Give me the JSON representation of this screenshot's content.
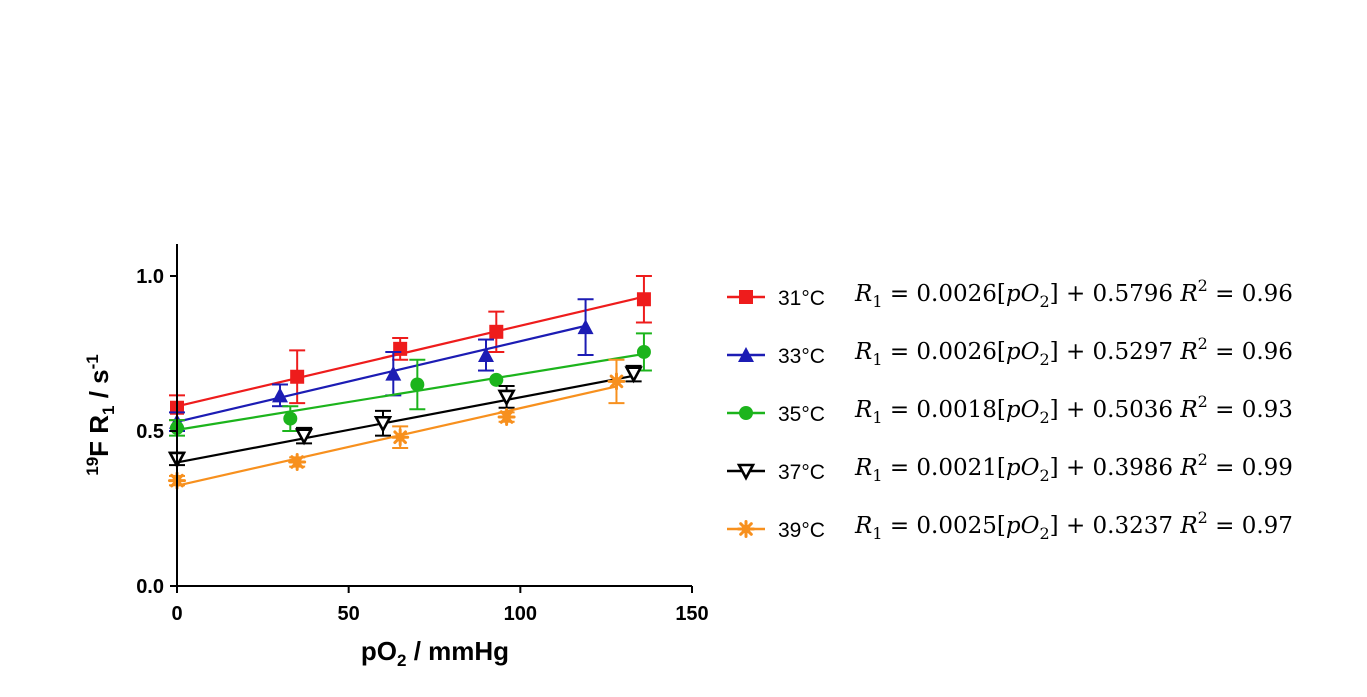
{
  "chart_data": {
    "type": "scatter",
    "title": "",
    "xlabel": {
      "main": "pO",
      "sub": "2",
      "rest": " / mmHg"
    },
    "ylabel": {
      "sup1": "19",
      "main": "F R",
      "sub": "1",
      "rest": " / s",
      "sup2": "-1"
    },
    "xlim": [
      0,
      150
    ],
    "ylim": [
      0,
      1.1
    ],
    "xticks": [
      0,
      50,
      100,
      150
    ],
    "xtick_labels": [
      "0",
      "50",
      "100",
      "150"
    ],
    "yticks": [
      0,
      0.5,
      1.0
    ],
    "ytick_labels": [
      "0.0",
      "0.5",
      "1.0"
    ],
    "grid": false,
    "legend_position": "right",
    "series": [
      {
        "name": "31°C",
        "color": "#ee1c1c",
        "marker": "square",
        "x": [
          0,
          35,
          65,
          93,
          136
        ],
        "y": [
          0.575,
          0.675,
          0.765,
          0.82,
          0.925
        ],
        "err": [
          0.04,
          0.085,
          0.035,
          0.065,
          0.075
        ],
        "fit": {
          "slope": 0.0026,
          "intercept": 0.5796,
          "x_range": [
            0,
            136
          ]
        },
        "equation": {
          "slope": "0.0026",
          "intercept": "0.5796",
          "r2": "0.96"
        }
      },
      {
        "name": "33°C",
        "color": "#1c1cb4",
        "marker": "triangle-up",
        "x": [
          0,
          30,
          63,
          90,
          119
        ],
        "y": [
          0.53,
          0.615,
          0.685,
          0.745,
          0.835
        ],
        "err": [
          0.03,
          0.035,
          0.07,
          0.05,
          0.09
        ],
        "fit": {
          "slope": 0.0026,
          "intercept": 0.5297,
          "x_range": [
            0,
            119
          ]
        },
        "equation": {
          "slope": "0.0026",
          "intercept": "0.5297",
          "r2": "0.96"
        }
      },
      {
        "name": "35°C",
        "color": "#1cb41c",
        "marker": "circle",
        "x": [
          0,
          33,
          70,
          93,
          136
        ],
        "y": [
          0.51,
          0.54,
          0.65,
          0.665,
          0.755
        ],
        "err": [
          0.025,
          0.04,
          0.08,
          0.0,
          0.06
        ],
        "fit": {
          "slope": 0.0018,
          "intercept": 0.5036,
          "x_range": [
            0,
            136
          ]
        },
        "equation": {
          "slope": "0.0018",
          "intercept": "0.5036",
          "r2": "0.93"
        }
      },
      {
        "name": "37°C",
        "color": "#000000",
        "marker": "triangle-down",
        "x": [
          0,
          37,
          60,
          96,
          133
        ],
        "y": [
          0.41,
          0.485,
          0.525,
          0.61,
          0.685
        ],
        "err": [
          0.02,
          0.025,
          0.04,
          0.035,
          0.025
        ],
        "fit": {
          "slope": 0.0021,
          "intercept": 0.3986,
          "x_range": [
            0,
            133
          ]
        },
        "equation": {
          "slope": "0.0021",
          "intercept": "0.3986",
          "r2": "0.99"
        }
      },
      {
        "name": "39°C",
        "color": "#f7901e",
        "marker": "asterisk",
        "x": [
          0,
          35,
          65,
          96,
          128
        ],
        "y": [
          0.34,
          0.4,
          0.48,
          0.545,
          0.66
        ],
        "err": [
          0.015,
          0.015,
          0.035,
          0.015,
          0.07
        ],
        "fit": {
          "slope": 0.0025,
          "intercept": 0.3237,
          "x_range": [
            0,
            128
          ]
        },
        "equation": {
          "slope": "0.0025",
          "intercept": "0.3237",
          "r2": "0.97"
        }
      }
    ]
  }
}
